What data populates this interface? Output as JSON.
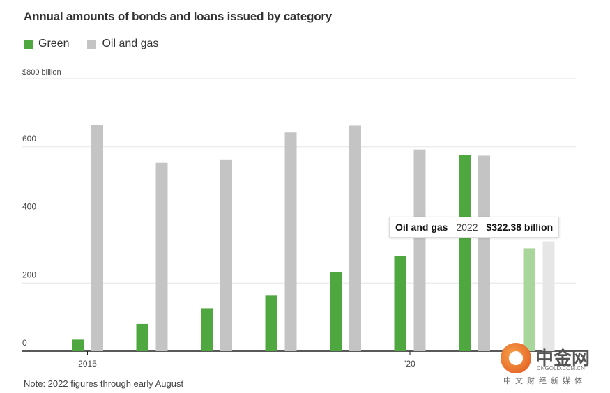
{
  "chart_data": {
    "type": "bar",
    "title": "Annual amounts of bonds and loans issued by category",
    "legend": [
      {
        "name": "Green",
        "color": "#4ea83f"
      },
      {
        "name": "Oil and gas",
        "color": "#c4c4c4"
      }
    ],
    "legend_placement": "top-left",
    "categories": [
      "2015",
      "2016",
      "2017",
      "2018",
      "2019",
      "2020",
      "2021",
      "2022"
    ],
    "x_tick_labels": [
      {
        "category": "2015",
        "label": "2015"
      },
      {
        "category": "2020",
        "label": "'20"
      }
    ],
    "series": [
      {
        "name": "Green",
        "color": "#4ea83f",
        "highlight_color": "#a9d69a",
        "values": [
          34,
          80,
          126,
          163,
          232,
          280,
          575,
          302
        ]
      },
      {
        "name": "Oil and gas",
        "color": "#c4c4c4",
        "highlight_color": "#e6e6e6",
        "values": [
          663,
          553,
          563,
          642,
          662,
          592,
          574,
          322.38
        ]
      }
    ],
    "y_ticks": [
      {
        "value": 0,
        "label": "0"
      },
      {
        "value": 200,
        "label": "200"
      },
      {
        "value": 400,
        "label": "400"
      },
      {
        "value": 600,
        "label": "600"
      },
      {
        "value": 800,
        "label": "$800 billion"
      }
    ],
    "ylim": [
      0,
      800
    ],
    "grid": true,
    "highlighted_category": "2022",
    "tooltip": {
      "series": "Oil and gas",
      "year": "2022",
      "value": "$322.38 billion"
    },
    "note": "Note: 2022 figures through early August"
  },
  "watermark": {
    "name_cn": "中金网",
    "domain": "CNGOLD.COM.CN",
    "tagline_cn": "中文财经新媒体"
  }
}
